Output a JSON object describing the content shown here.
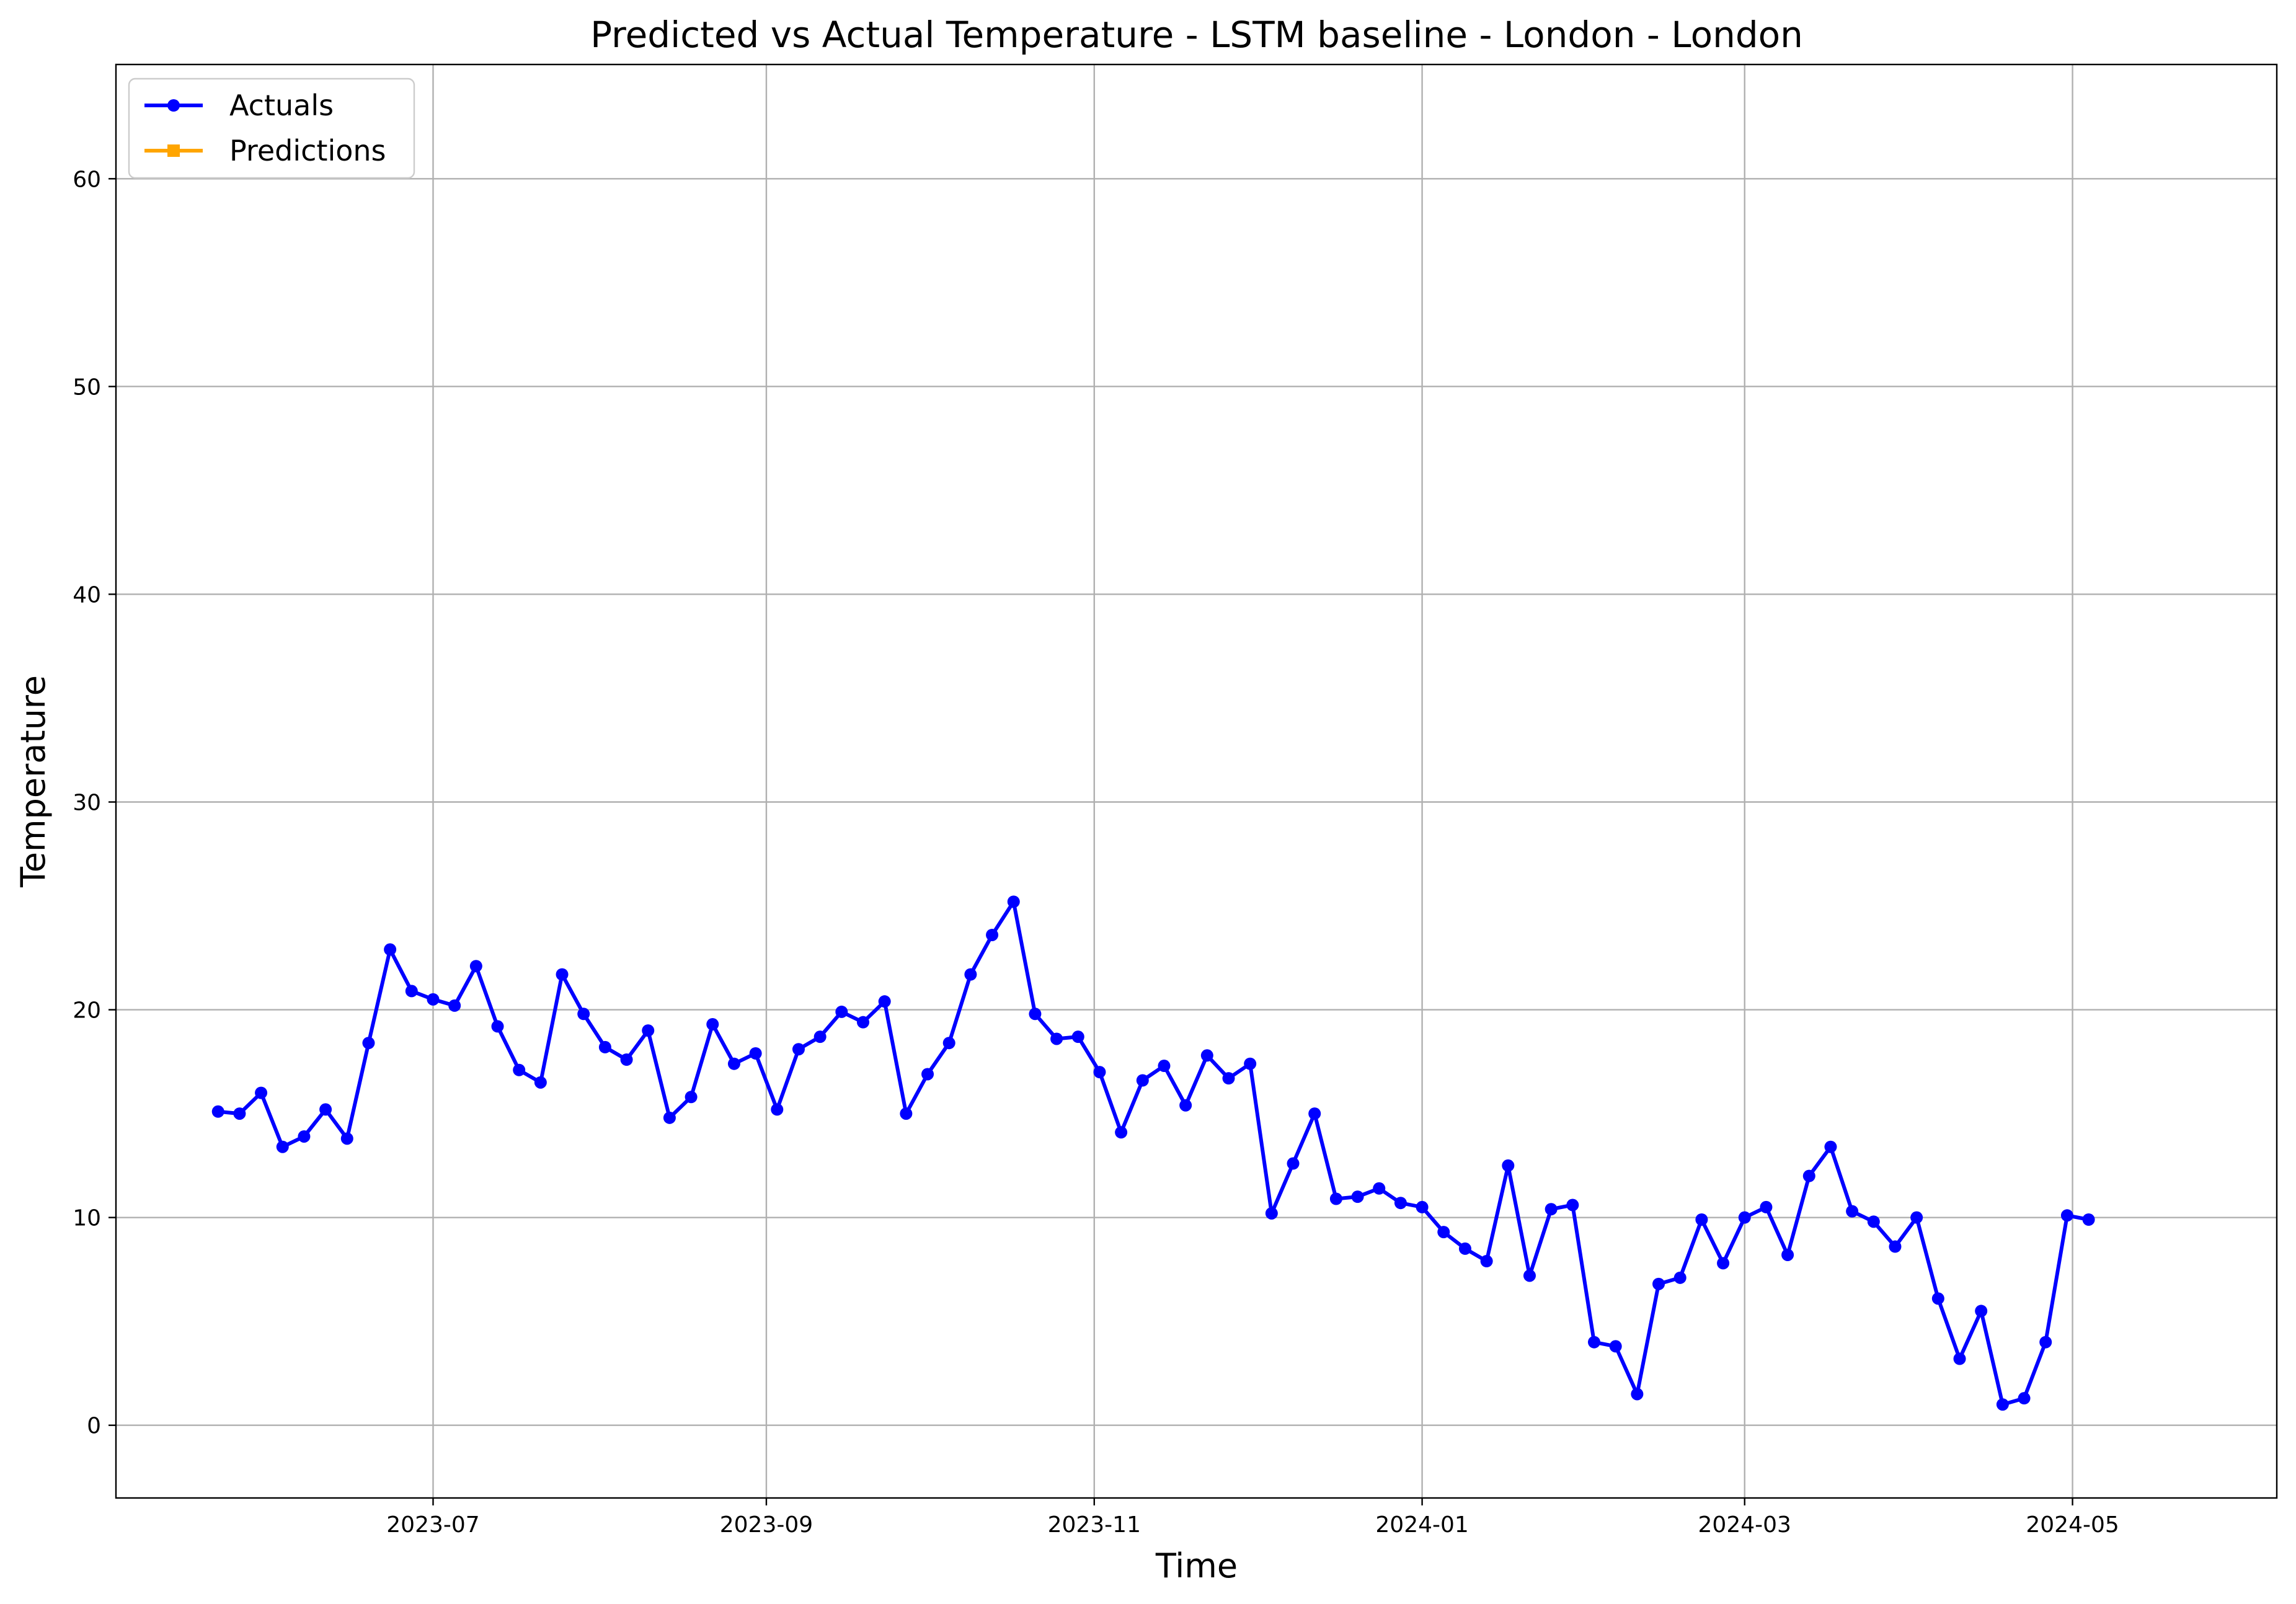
{
  "chart_data": {
    "type": "line",
    "title": "Predicted vs Actual Temperature - LSTM baseline - London - London",
    "xlabel": "Time",
    "ylabel": "Temperature",
    "x_range": [
      "2023-05-03",
      "2024-06-08"
    ],
    "ylim": [
      -3.5,
      65.5
    ],
    "grid": true,
    "legend_position": "upper-left",
    "x_ticks": [
      {
        "date": "2023-07-01",
        "label": "2023-07"
      },
      {
        "date": "2023-09-01",
        "label": "2023-09"
      },
      {
        "date": "2023-11-01",
        "label": "2023-11"
      },
      {
        "date": "2024-01-01",
        "label": "2024-01"
      },
      {
        "date": "2024-03-01",
        "label": "2024-03"
      },
      {
        "date": "2024-05-01",
        "label": "2024-05"
      }
    ],
    "y_ticks": [
      0,
      10,
      20,
      30,
      40,
      50,
      60
    ],
    "series": [
      {
        "name": "Actuals",
        "color": "#0000ff",
        "marker": "circle",
        "points": [
          [
            "2023-05-22",
            15.1
          ],
          [
            "2023-05-26",
            15.0
          ],
          [
            "2023-05-30",
            16.0
          ],
          [
            "2023-06-03",
            13.4
          ],
          [
            "2023-06-07",
            13.9
          ],
          [
            "2023-06-11",
            15.2
          ],
          [
            "2023-06-15",
            13.8
          ],
          [
            "2023-06-19",
            18.4
          ],
          [
            "2023-06-23",
            22.9
          ],
          [
            "2023-06-27",
            20.9
          ],
          [
            "2023-07-01",
            20.5
          ],
          [
            "2023-07-05",
            20.2
          ],
          [
            "2023-07-09",
            22.1
          ],
          [
            "2023-07-13",
            19.2
          ],
          [
            "2023-07-17",
            17.1
          ],
          [
            "2023-07-21",
            16.5
          ],
          [
            "2023-07-25",
            21.7
          ],
          [
            "2023-07-29",
            19.8
          ],
          [
            "2023-08-02",
            18.2
          ],
          [
            "2023-08-06",
            17.6
          ],
          [
            "2023-08-10",
            19.0
          ],
          [
            "2023-08-14",
            14.8
          ],
          [
            "2023-08-18",
            15.8
          ],
          [
            "2023-08-22",
            19.3
          ],
          [
            "2023-08-26",
            17.4
          ],
          [
            "2023-08-30",
            17.9
          ],
          [
            "2023-09-03",
            15.2
          ],
          [
            "2023-09-07",
            18.1
          ],
          [
            "2023-09-11",
            18.7
          ],
          [
            "2023-09-15",
            19.9
          ],
          [
            "2023-09-19",
            19.4
          ],
          [
            "2023-09-23",
            20.4
          ],
          [
            "2023-09-27",
            15.0
          ],
          [
            "2023-10-01",
            16.9
          ],
          [
            "2023-10-05",
            18.4
          ],
          [
            "2023-10-09",
            21.7
          ],
          [
            "2023-10-13",
            23.6
          ],
          [
            "2023-10-17",
            25.2
          ],
          [
            "2023-10-21",
            19.8
          ],
          [
            "2023-10-25",
            18.6
          ],
          [
            "2023-10-29",
            18.7
          ],
          [
            "2023-11-02",
            17.0
          ],
          [
            "2023-11-06",
            14.1
          ],
          [
            "2023-11-10",
            16.6
          ],
          [
            "2023-11-14",
            17.3
          ],
          [
            "2023-11-18",
            15.4
          ],
          [
            "2023-11-22",
            17.8
          ],
          [
            "2023-11-26",
            16.7
          ],
          [
            "2023-11-30",
            17.4
          ],
          [
            "2023-12-04",
            10.2
          ],
          [
            "2023-12-08",
            12.6
          ],
          [
            "2023-12-12",
            15.0
          ],
          [
            "2023-12-16",
            10.9
          ],
          [
            "2023-12-20",
            11.0
          ],
          [
            "2023-12-24",
            11.4
          ],
          [
            "2023-12-28",
            10.7
          ],
          [
            "2024-01-01",
            10.5
          ],
          [
            "2024-01-05",
            9.3
          ],
          [
            "2024-01-09",
            8.5
          ],
          [
            "2024-01-13",
            7.9
          ],
          [
            "2024-01-17",
            12.5
          ],
          [
            "2024-01-21",
            7.2
          ],
          [
            "2024-01-25",
            10.4
          ],
          [
            "2024-01-29",
            10.6
          ],
          [
            "2024-02-02",
            4.0
          ],
          [
            "2024-02-06",
            3.8
          ],
          [
            "2024-02-10",
            1.5
          ],
          [
            "2024-02-14",
            6.8
          ],
          [
            "2024-02-18",
            7.1
          ],
          [
            "2024-02-22",
            9.9
          ],
          [
            "2024-02-26",
            7.8
          ],
          [
            "2024-03-01",
            10.0
          ],
          [
            "2024-03-05",
            10.5
          ],
          [
            "2024-03-09",
            8.2
          ],
          [
            "2024-03-13",
            12.0
          ],
          [
            "2024-03-17",
            13.4
          ],
          [
            "2024-03-21",
            10.3
          ],
          [
            "2024-03-25",
            9.8
          ],
          [
            "2024-03-29",
            8.6
          ],
          [
            "2024-04-02",
            10.0
          ],
          [
            "2024-04-06",
            6.1
          ],
          [
            "2024-04-10",
            3.2
          ],
          [
            "2024-04-14",
            5.5
          ],
          [
            "2024-04-18",
            1.0
          ],
          [
            "2024-04-22",
            1.3
          ],
          [
            "2024-04-26",
            4.0
          ],
          [
            "2024-04-30",
            10.1
          ],
          [
            "2024-05-04",
            9.9
          ]
        ]
      },
      {
        "name": "Predictions",
        "color": "#ffa500",
        "marker": "square",
        "points": []
      }
    ]
  }
}
